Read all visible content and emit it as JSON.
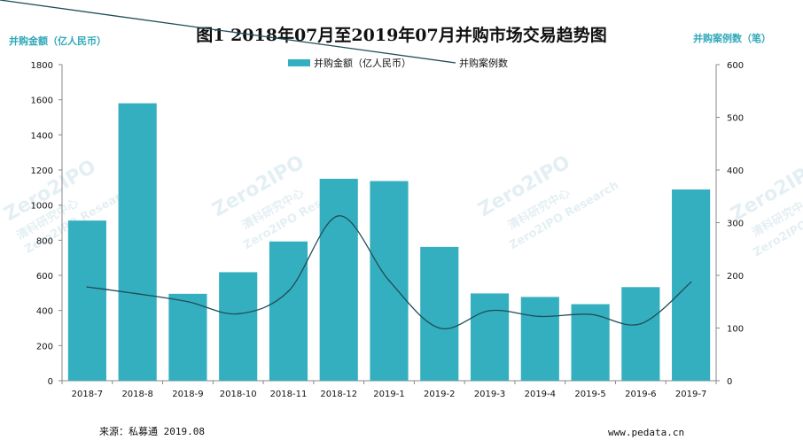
{
  "chart_data": {
    "type": "bar",
    "title": "图1 2018年07月至2019年07月并购市场交易趋势图",
    "ylabel": "并购金额（亿人民币）",
    "y2label": "并购案例数（笔）",
    "categories": [
      "2018-7",
      "2018-8",
      "2018-9",
      "2018-10",
      "2018-11",
      "2018-12",
      "2019-1",
      "2019-2",
      "2019-3",
      "2019-4",
      "2019-5",
      "2019-6",
      "2019-7"
    ],
    "ylim": [
      0,
      1800
    ],
    "yticks": [
      0,
      200,
      400,
      600,
      800,
      1000,
      1200,
      1400,
      1600,
      1800
    ],
    "y2lim": [
      0,
      600
    ],
    "y2ticks": [
      0,
      100,
      200,
      300,
      400,
      500,
      600
    ],
    "series": [
      {
        "name": "并购金额（亿人民币）",
        "type": "bar",
        "axis": "left",
        "color": "#34AFBF",
        "values": [
          912,
          1580,
          495,
          618,
          793,
          1150,
          1137,
          762,
          497,
          477,
          436,
          533,
          1089
        ]
      },
      {
        "name": "并购案例数",
        "type": "line",
        "axis": "right",
        "color": "#1F4E59",
        "values": [
          178,
          165,
          150,
          127,
          170,
          313,
          190,
          100,
          133,
          122,
          126,
          108,
          187
        ]
      }
    ],
    "legend_position": "top-center",
    "grid": false
  },
  "footer": {
    "source": "来源：私募通 2019.08",
    "site": "www.pedata.cn"
  },
  "watermark": {
    "logo": "Zero2IPO",
    "cn": "清科研究中心",
    "en": "Zero2IPO Research"
  }
}
